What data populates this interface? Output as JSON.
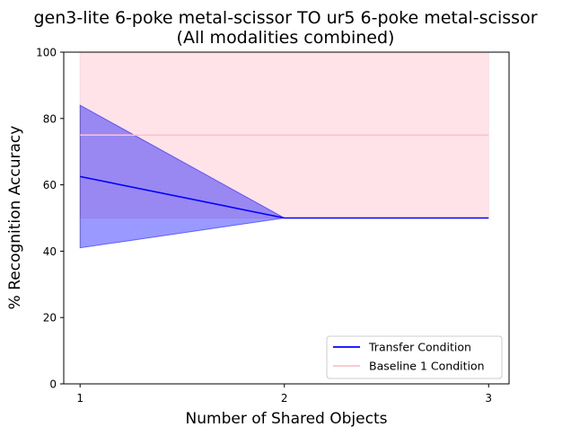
{
  "chart_data": {
    "type": "line",
    "title_line1": "gen3-lite 6-poke metal-scissor TO ur5 6-poke metal-scissor",
    "title_line2": "(All modalities combined)",
    "xlabel": "Number of Shared Objects",
    "ylabel": "% Recognition Accuracy",
    "xlim": [
      0.92,
      3.1
    ],
    "ylim": [
      0,
      100
    ],
    "xticks": [
      1,
      2,
      3
    ],
    "yticks": [
      0,
      20,
      40,
      60,
      80,
      100
    ],
    "grid": false,
    "legend_position": "lower-right",
    "series": [
      {
        "name": "Transfer Condition",
        "color": "#0000ff",
        "x": [
          1,
          2,
          3
        ],
        "y": [
          62.5,
          50,
          50
        ],
        "band_low": [
          41,
          50,
          50
        ],
        "band_high": [
          84,
          50,
          50
        ]
      },
      {
        "name": "Baseline 1 Condition",
        "color": "#ffc0cb",
        "x": [
          1,
          2,
          3
        ],
        "y": [
          75,
          75,
          75
        ],
        "band_low": [
          50,
          50,
          50
        ],
        "band_high": [
          100,
          100,
          100
        ]
      }
    ]
  }
}
